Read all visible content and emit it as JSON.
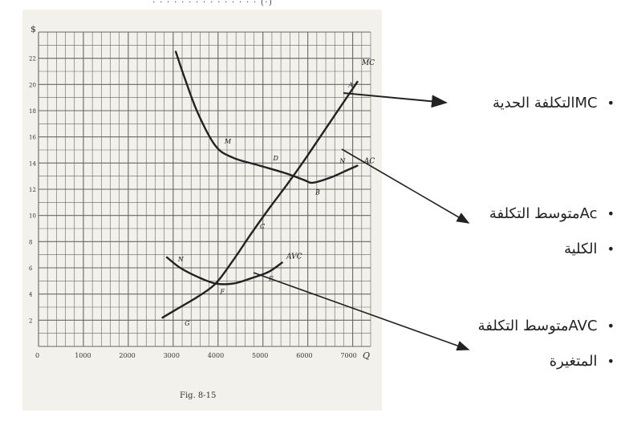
{
  "top_caption": "· · · · · ·  · · · ·  · · · · · (·)",
  "figure_label": "Fig. 8-15",
  "chart_data": {
    "type": "line",
    "ylabel": "$",
    "xlabel": "Q",
    "xlim": [
      0,
      7500
    ],
    "ylim": [
      0,
      24
    ],
    "x_ticks": [
      "0",
      "1000",
      "2000",
      "3000",
      "4000",
      "5000",
      "6000",
      "7000"
    ],
    "y_ticks": [
      "2",
      "4",
      "6",
      "8",
      "10",
      "12",
      "14",
      "16",
      "18",
      "20",
      "22"
    ],
    "series": [
      {
        "name": "MC",
        "points": [
          [
            2800,
            2.2
          ],
          [
            3200,
            3.0
          ],
          [
            3600,
            3.8
          ],
          [
            4000,
            4.8
          ],
          [
            4400,
            6.6
          ],
          [
            4800,
            8.6
          ],
          [
            5200,
            10.5
          ],
          [
            5600,
            12.3
          ],
          [
            6000,
            14.2
          ],
          [
            6400,
            16.2
          ],
          [
            6800,
            18.2
          ],
          [
            7200,
            20.2
          ]
        ]
      },
      {
        "name": "AC",
        "points": [
          [
            3100,
            22.5
          ],
          [
            3300,
            20.5
          ],
          [
            3600,
            17.8
          ],
          [
            4000,
            15.3
          ],
          [
            4400,
            14.4
          ],
          [
            5000,
            13.8
          ],
          [
            5600,
            13.2
          ],
          [
            6000,
            12.7
          ],
          [
            6200,
            12.5
          ],
          [
            6600,
            12.9
          ],
          [
            7000,
            13.5
          ],
          [
            7200,
            13.8
          ]
        ]
      },
      {
        "name": "AVC",
        "points": [
          [
            2900,
            6.8
          ],
          [
            3200,
            6.0
          ],
          [
            3600,
            5.3
          ],
          [
            4000,
            4.8
          ],
          [
            4400,
            4.8
          ],
          [
            4800,
            5.2
          ],
          [
            5200,
            5.7
          ],
          [
            5500,
            6.4
          ]
        ]
      }
    ],
    "point_labels": [
      {
        "text": "A",
        "x": 7000,
        "y": 19.8
      },
      {
        "text": "M",
        "x": 4200,
        "y": 15.5
      },
      {
        "text": "D",
        "x": 5300,
        "y": 14.2
      },
      {
        "text": "N",
        "x": 6800,
        "y": 14.0
      },
      {
        "text": "B",
        "x": 6250,
        "y": 11.6
      },
      {
        "text": "C",
        "x": 5000,
        "y": 9.0
      },
      {
        "text": "N",
        "x": 3150,
        "y": 6.5
      },
      {
        "text": "F",
        "x": 4100,
        "y": 4.0
      },
      {
        "text": "E",
        "x": 5200,
        "y": 5.0
      },
      {
        "text": "G",
        "x": 3300,
        "y": 1.6
      },
      {
        "text": "MC",
        "x": 7300,
        "y": 21.5
      },
      {
        "text": "AC",
        "x": 7350,
        "y": 14.0
      },
      {
        "text": "AVC",
        "x": 5600,
        "y": 6.7
      }
    ]
  },
  "legend": {
    "item1": "MCالتكلفة الحدية",
    "item2": "Acمتوسط التكلفة",
    "item3": "الكلية",
    "item4": "AVCمتوسط التكلفة",
    "item5": "المتغيرة",
    "bullet": "•"
  },
  "colors": {
    "ink": "#222222",
    "grid": "#666666",
    "paper": "#f3f1ec"
  }
}
